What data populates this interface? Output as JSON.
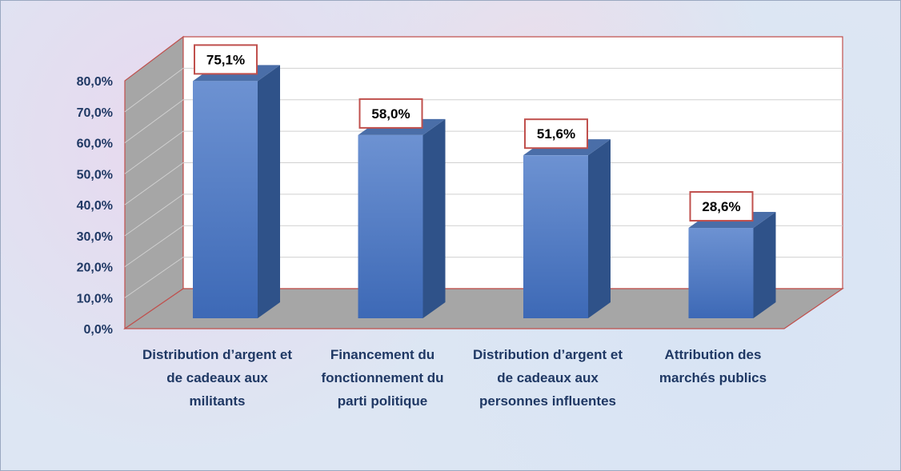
{
  "chart_data": {
    "type": "bar3d",
    "categories": [
      "Distribution d’argent et de cadeaux aux militants",
      "Financement du fonctionnement du parti politique",
      "Distribution d’argent et de cadeaux aux personnes influentes",
      "Attribution des marchés publics"
    ],
    "values": [
      75.1,
      58.0,
      51.6,
      28.6
    ],
    "value_labels": [
      "75,1%",
      "58,0%",
      "51,6%",
      "28,6%"
    ],
    "color": "#4f7cc4",
    "ylim": [
      0,
      80
    ],
    "yticks": [
      {
        "value": 0,
        "label": "0,0%"
      },
      {
        "value": 10,
        "label": "10,0%"
      },
      {
        "value": 20,
        "label": "20,0%"
      },
      {
        "value": 30,
        "label": "30,0%"
      },
      {
        "value": 40,
        "label": "40,0%"
      },
      {
        "value": 50,
        "label": "50,0%"
      },
      {
        "value": 60,
        "label": "60,0%"
      },
      {
        "value": 70,
        "label": "70,0%"
      },
      {
        "value": 80,
        "label": "80,0%"
      }
    ],
    "grid": true
  }
}
